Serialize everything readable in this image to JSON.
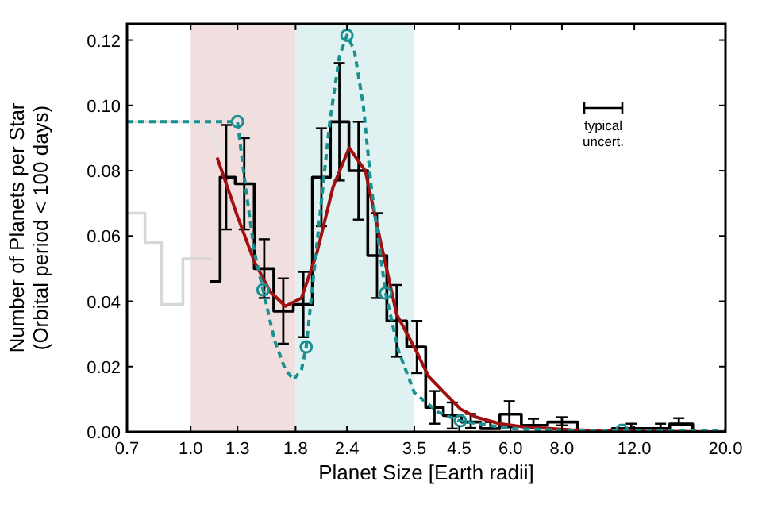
{
  "chart_data": {
    "type": "line",
    "xlabel": "Planet Size [Earth radii]",
    "ylabel": "Number of Planets per Star\n(Orbital period < 100 days)",
    "log": "x",
    "grid": false,
    "xlim": [
      0.7,
      20
    ],
    "xticks": [
      0.7,
      {
        "value": 1,
        "label": "1.0"
      },
      1.3,
      1.8,
      2.4,
      3.5,
      4.5,
      {
        "value": 6,
        "label": "6.0"
      },
      {
        "value": 8,
        "label": "8.0"
      },
      {
        "value": 12,
        "label": "12.0"
      },
      {
        "value": 20,
        "label": "20.0"
      }
    ],
    "ylim": [
      0,
      0.125
    ],
    "yticks": [
      {
        "value": 0,
        "label": "0.00"
      },
      {
        "value": 0.02,
        "label": "0.02"
      },
      {
        "value": 0.04,
        "label": "0.04"
      },
      {
        "value": 0.06,
        "label": "0.06"
      },
      {
        "value": 0.08,
        "label": "0.08"
      },
      {
        "value": 0.1,
        "label": "0.10"
      },
      {
        "value": 0.12,
        "label": "0.12"
      }
    ],
    "bands": [
      {
        "axis": "x",
        "from": 1.0,
        "to": 1.8,
        "color": "#f1dede"
      },
      {
        "axis": "x",
        "from": 1.8,
        "to": 3.5,
        "color": "#e0f1f1"
      }
    ],
    "annotations": [
      "typical\nuncert."
    ],
    "series": [
      {
        "type": "step",
        "color": "#d8d8d8",
        "x": [
          0.7,
          0.74,
          0.81,
          0.89,
          1.03,
          1.12
        ],
        "values": [
          0.067,
          0.067,
          0.058,
          0.039,
          0.053,
          0.053
        ]
      },
      {
        "color": "#e2e2e2",
        "x": [
          0.7,
          1.0,
          1.08,
          1.15,
          1.22
        ],
        "values": [
          0.095,
          0.095,
          0.094,
          0.09,
          0.085
        ]
      },
      {
        "type": "step",
        "color": "#000000",
        "x": [
          1.12,
          1.14,
          1.22,
          1.35,
          1.51,
          1.68,
          1.88,
          2.08,
          2.3,
          2.56,
          2.84,
          3.17,
          3.55,
          3.92,
          4.33,
          4.8,
          5.36,
          5.96,
          6.82,
          8.0,
          9.54,
          11.8,
          13.9,
          15.4,
          18.0,
          20.0
        ],
        "values": [
          0.046,
          0.046,
          0.078,
          0.076,
          0.05,
          0.037,
          0.039,
          0.078,
          0.095,
          0.08,
          0.054,
          0.034,
          0.026,
          0.0075,
          0.005,
          0.003,
          0.001,
          0.0054,
          0.002,
          0.003,
          0,
          0.001,
          0.001,
          0.0024,
          0,
          0
        ],
        "errors": [
          null,
          null,
          0.016,
          0.014,
          0.009,
          0.01,
          0.01,
          0.015,
          0.018,
          0.015,
          0.013,
          0.011,
          0.008,
          0.005,
          0.004,
          [
            0.0012,
            0.0055
          ],
          [
            0.001,
            0.003
          ],
          0.004,
          [
            0.002,
            0.004
          ],
          [
            0.002,
            0.0045
          ],
          null,
          [
            0.001,
            0.0025
          ],
          [
            0.001,
            0.0025
          ],
          [
            0.0024,
            0.0042
          ],
          null,
          null
        ]
      },
      {
        "color": "#a01010",
        "x": [
          1.16,
          1.3,
          1.43,
          1.56,
          1.7,
          1.86,
          2.03,
          2.22,
          2.43,
          2.66,
          2.9,
          3.17,
          3.53,
          3.79,
          4.14,
          4.53,
          4.95,
          5.65,
          6.46,
          8.44,
          12.0,
          20.0
        ],
        "values": [
          0.084,
          0.066,
          0.052,
          0.043,
          0.0385,
          0.041,
          0.055,
          0.075,
          0.087,
          0.08,
          0.058,
          0.036,
          0.025,
          0.017,
          0.012,
          0.007,
          0.0045,
          0.0025,
          0.0015,
          0.0006,
          0.0002,
          0
        ]
      },
      {
        "color": "#1a9090",
        "line_style": "dashed",
        "x": [
          0.7,
          1.0,
          1.3,
          1.36,
          1.43,
          1.5,
          1.6,
          1.7,
          1.78,
          1.86,
          1.91,
          2.03,
          2.18,
          2.3,
          2.4,
          2.5,
          2.63,
          2.75,
          2.98,
          3.2,
          3.5,
          4.0,
          4.5,
          6.0,
          8.0,
          11.2,
          20.0
        ],
        "values": [
          0.095,
          0.095,
          0.095,
          0.075,
          0.055,
          0.0435,
          0.028,
          0.019,
          0.016,
          0.019,
          0.026,
          0.058,
          0.095,
          0.115,
          0.1215,
          0.117,
          0.1,
          0.075,
          0.0425,
          0.025,
          0.012,
          0.006,
          0.0034,
          0.001,
          0.0005,
          0.0005,
          0.0002
        ]
      },
      {
        "type": "scatter",
        "color": "#1a9090",
        "marker": "circle",
        "x": [
          1.3,
          1.5,
          1.91,
          2.4,
          2.98,
          4.53,
          11.2
        ],
        "values": [
          0.095,
          0.0435,
          0.026,
          0.1215,
          0.0425,
          0.0034,
          0.0005
        ]
      }
    ]
  }
}
